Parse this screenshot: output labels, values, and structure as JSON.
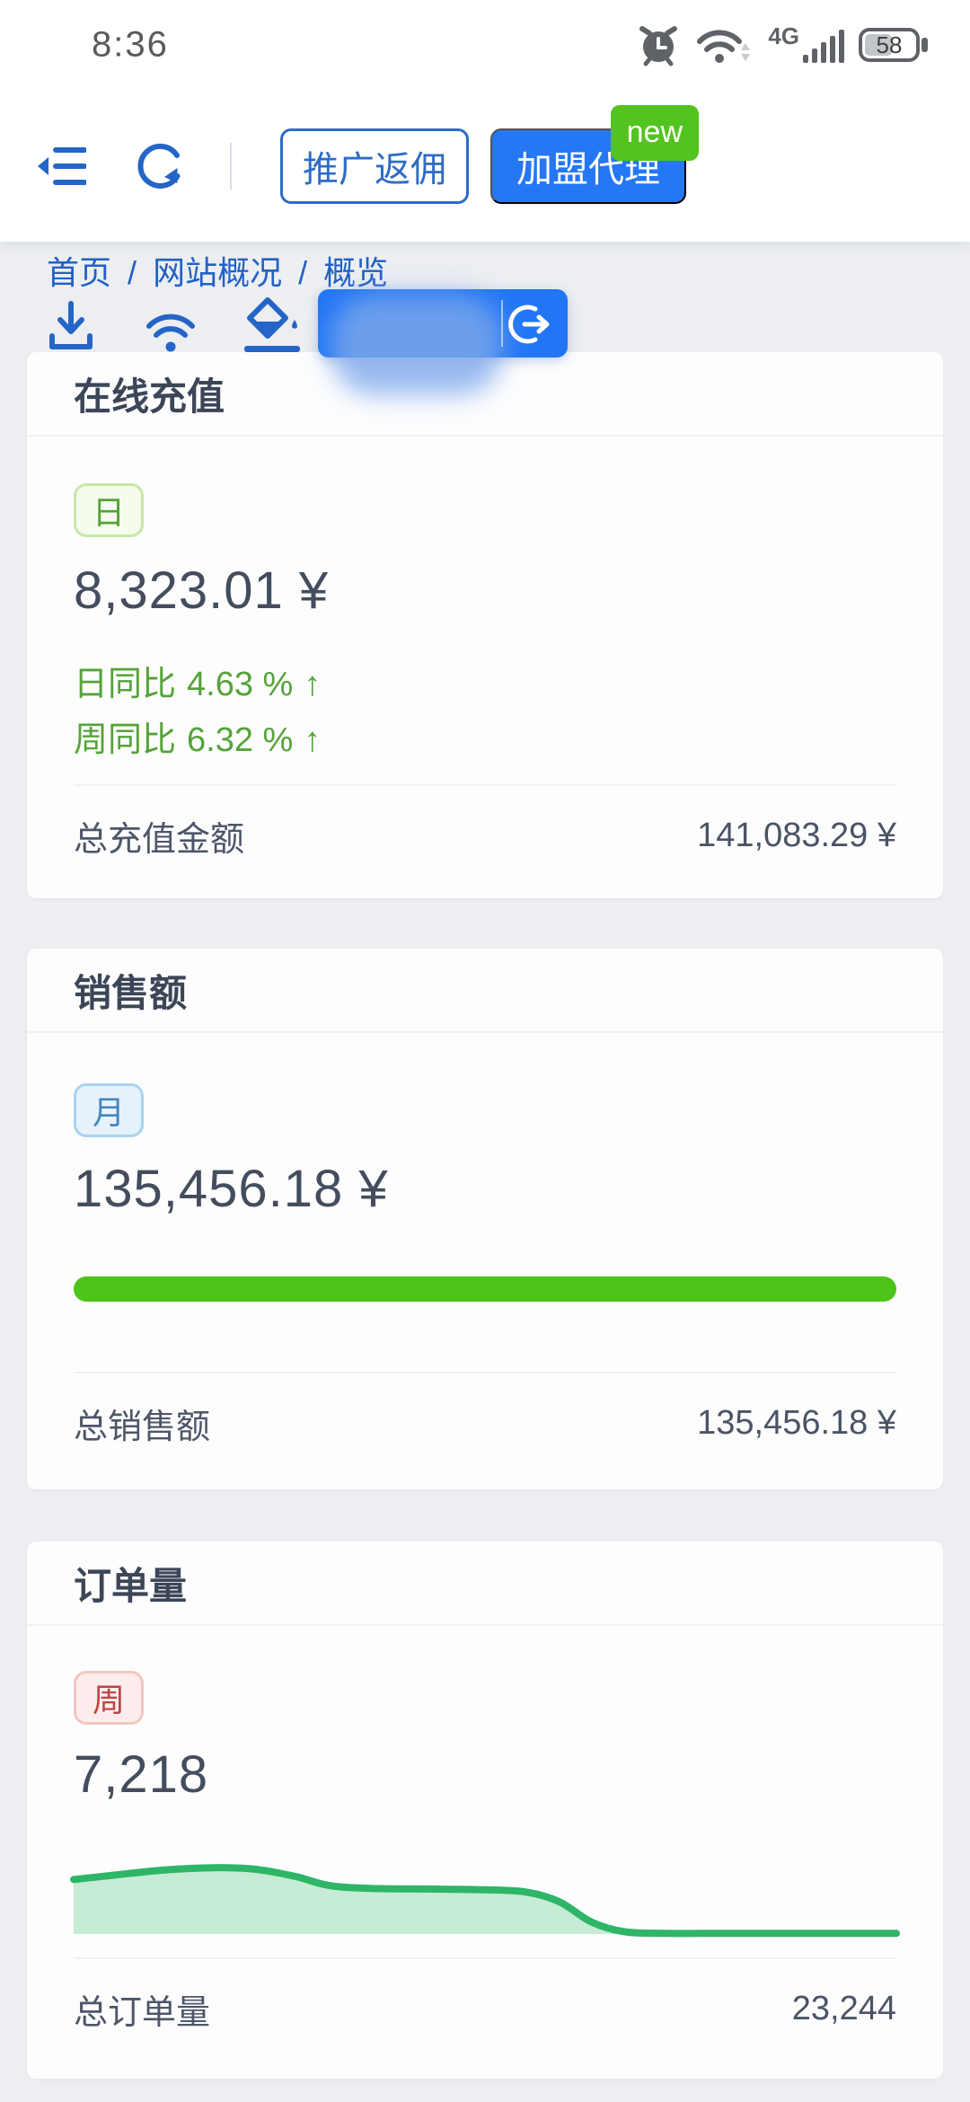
{
  "status_bar": {
    "time": "8:36",
    "network_label": "4G",
    "battery_level": "58",
    "icons": [
      "alarm-icon",
      "wifi-status-icon",
      "signal-bars-icon",
      "battery-indicator"
    ]
  },
  "toolbar": {
    "promo_button_label": "推广返佣",
    "agent_button_label": "加盟代理",
    "new_badge": "new",
    "icons": [
      "menu-fold-icon",
      "reload-icon"
    ]
  },
  "breadcrumb": {
    "separator": "/",
    "items": [
      "首页",
      "网站概况",
      "概览"
    ]
  },
  "quick_actions": {
    "icons": [
      "download-icon",
      "wifi-icon",
      "paint-fill-icon"
    ]
  },
  "user_pill": {
    "redacted": true,
    "logout_icon": "logout-icon"
  },
  "cards": {
    "recharge": {
      "title": "在线充值",
      "period_tag": "日",
      "value": "8,323.01 ¥",
      "metrics": [
        {
          "label": "日同比",
          "value": "4.63 %",
          "arrow": "↑"
        },
        {
          "label": "周同比",
          "value": "6.32 %",
          "arrow": "↑"
        }
      ],
      "footer_label": "总充值金额",
      "footer_value": "141,083.29 ¥"
    },
    "sales": {
      "title": "销售额",
      "period_tag": "月",
      "value": "135,456.18 ¥",
      "progress_percent": 100,
      "footer_label": "总销售额",
      "footer_value": "135,456.18 ¥"
    },
    "orders": {
      "title": "订单量",
      "period_tag": "周",
      "value": "7,218",
      "footer_label": "总订单量",
      "footer_value": "23,244"
    }
  },
  "chart_data": {
    "type": "area",
    "x": [
      0,
      5,
      11,
      17,
      22,
      27,
      31,
      36,
      44,
      50,
      55,
      59,
      63,
      67,
      72,
      80,
      90,
      100
    ],
    "y": [
      74,
      80,
      87,
      90,
      88,
      78,
      66,
      62,
      61,
      60,
      57,
      44,
      16,
      3,
      1,
      1,
      1,
      1
    ],
    "ymax": 100,
    "xlabel": "",
    "ylabel": "",
    "axes_visible": false,
    "line_color": "#2eb567",
    "fill_color": "#c6ecd5"
  },
  "colors": {
    "accent-blue": "#2577f3",
    "link-blue": "#2161c4",
    "outline-blue": "#2e6cc6",
    "badge-green": "#53c41f",
    "metric-green": "#55a339",
    "progress-green": "#4cc41a",
    "chart-line-green": "#2eb567",
    "chart-fill-green": "#c6ecd5",
    "tag-green-bg": "#f5fbed",
    "tag-green-border": "#c9e7a8",
    "tag-green-text": "#55a236",
    "tag-blue-bg": "#e5f2fb",
    "tag-blue-border": "#a9d3ee",
    "tag-blue-text": "#4684bb",
    "tag-red-bg": "#fcedec",
    "tag-red-border": "#f2c6c2",
    "tag-red-text": "#bd4340",
    "page-bg": "#eceef1",
    "card-bg": "#fdfdfe",
    "title-text": "#3c4657",
    "value-text": "#434d5d",
    "footer-label": "#4d5668",
    "footer-value": "#4b5466",
    "divider": "#eff1f4",
    "status-icon": "#5f6368"
  }
}
